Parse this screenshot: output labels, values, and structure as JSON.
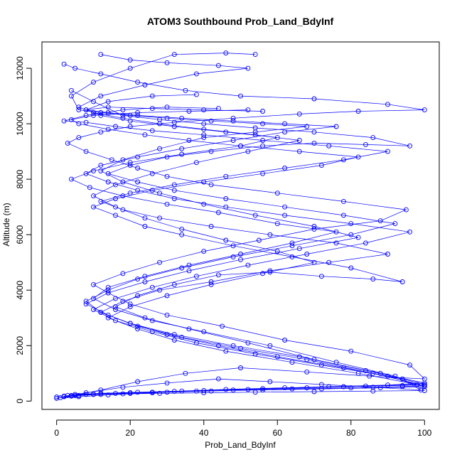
{
  "chart_data": {
    "type": "line",
    "title": "ATOM3 Southbound Prob_Land_BdyInf",
    "xlabel": "Prob_Land_BdyInf",
    "ylabel": "Altitude (m)",
    "xlim": [
      -4,
      104
    ],
    "ylim": [
      -300,
      12950
    ],
    "x_ticks": [
      0,
      20,
      40,
      60,
      80,
      100
    ],
    "y_ticks": [
      0,
      2000,
      4000,
      6000,
      8000,
      10000,
      12000
    ],
    "x_tick_labels": [
      "0",
      "20",
      "40",
      "60",
      "80",
      "100"
    ],
    "y_tick_labels": [
      "0",
      "2000",
      "4000",
      "6000",
      "8000",
      "10000",
      "12000"
    ],
    "marker": "open-circle",
    "grid": false,
    "legend": "none",
    "color": "#0000ff",
    "series": [
      {
        "x": [
          0,
          5,
          12,
          22,
          35,
          50,
          68,
          85,
          100,
          96,
          80,
          62,
          45,
          30,
          20,
          14,
          10,
          18,
          28,
          40,
          55,
          70,
          88,
          95,
          78,
          60,
          42,
          30,
          22,
          15,
          8,
          3,
          6,
          12,
          20,
          32,
          48,
          66,
          82,
          100,
          90,
          70,
          50,
          35,
          22,
          12,
          5,
          2
        ],
        "y": [
          150,
          200,
          400,
          700,
          1000,
          1200,
          1050,
          900,
          800,
          1300,
          1800,
          2200,
          2700,
          3100,
          3500,
          3900,
          4200,
          4600,
          5000,
          5400,
          5800,
          6200,
          6500,
          6900,
          7200,
          7500,
          7800,
          8100,
          8400,
          8700,
          9000,
          9300,
          9500,
          9700,
          9900,
          10050,
          10200,
          10350,
          10450,
          10500,
          10700,
          10900,
          11000,
          11200,
          11500,
          11800,
          12000,
          12150
        ]
      },
      {
        "x": [
          2,
          8,
          18,
          30,
          44,
          58,
          72,
          86,
          99,
          92,
          76,
          58,
          40,
          26,
          16,
          10,
          14,
          24,
          36,
          50,
          64,
          76,
          60,
          44,
          30,
          18,
          9,
          4,
          10,
          20,
          34,
          50,
          60,
          46,
          32,
          20,
          12,
          8,
          14,
          26,
          38
        ],
        "y": [
          180,
          300,
          500,
          650,
          800,
          700,
          600,
          500,
          400,
          900,
          1400,
          2000,
          2500,
          2900,
          3300,
          3700,
          4100,
          4500,
          4900,
          5300,
          5700,
          6100,
          6400,
          6800,
          7100,
          7400,
          7700,
          8000,
          8300,
          8600,
          8900,
          9200,
          9500,
          9700,
          9900,
          10100,
          10300,
          10500,
          10800,
          11000,
          11050
        ]
      },
      {
        "x": [
          4,
          10,
          20,
          32,
          46,
          62,
          78,
          94,
          100,
          88,
          70,
          52,
          36,
          24,
          16,
          22,
          32,
          44,
          58,
          72,
          86,
          94,
          80,
          64,
          48,
          34,
          24,
          16,
          10,
          16,
          26,
          40,
          56,
          72,
          82,
          66,
          50,
          36,
          24,
          14,
          6,
          4,
          10,
          22,
          36,
          52
        ],
        "y": [
          200,
          250,
          300,
          350,
          420,
          480,
          520,
          560,
          600,
          1000,
          1500,
          2100,
          2600,
          3000,
          3400,
          3800,
          4200,
          4550,
          4650,
          4500,
          4400,
          4300,
          4800,
          5200,
          5600,
          6000,
          6300,
          6700,
          7000,
          7300,
          7600,
          7900,
          8200,
          8500,
          8800,
          9000,
          9200,
          9400,
          9600,
          9800,
          10000,
          10150,
          10300,
          10400,
          10450,
          10500
        ]
      },
      {
        "x": [
          1,
          6,
          14,
          26,
          40,
          56,
          74,
          90,
          100,
          84,
          66,
          48,
          32,
          20,
          12,
          18,
          28,
          42,
          58,
          74,
          90,
          76,
          58,
          42,
          28,
          18,
          12,
          20,
          32,
          46,
          62,
          78,
          90,
          74,
          56,
          40,
          26,
          16,
          8,
          2,
          8,
          18,
          30,
          44
        ],
        "y": [
          120,
          160,
          220,
          300,
          380,
          450,
          520,
          580,
          650,
          1100,
          1600,
          2000,
          2400,
          2800,
          3200,
          3600,
          4000,
          4300,
          4700,
          5000,
          5300,
          5700,
          6000,
          6300,
          6600,
          6900,
          7200,
          7500,
          7800,
          8100,
          8400,
          8700,
          9000,
          9200,
          9400,
          9600,
          9750,
          9900,
          10050,
          10100,
          10300,
          10500,
          10600,
          10550
        ]
      },
      {
        "x": [
          0,
          4,
          10,
          18,
          28,
          40,
          54,
          70,
          86,
          100,
          94,
          78,
          60,
          44,
          30,
          20,
          12,
          8,
          14,
          22,
          34,
          48,
          64,
          80,
          92,
          78,
          62,
          46,
          32,
          22,
          14,
          20,
          30,
          42,
          56,
          70,
          84,
          96,
          86,
          70,
          54,
          40,
          28,
          18,
          10,
          4
        ],
        "y": [
          100,
          180,
          240,
          260,
          280,
          300,
          320,
          340,
          360,
          380,
          800,
          1200,
          1600,
          2000,
          2400,
          2800,
          3200,
          3600,
          4000,
          4400,
          4800,
          5200,
          5600,
          6000,
          6400,
          6700,
          7000,
          7300,
          7600,
          7900,
          8200,
          8500,
          8800,
          9000,
          9200,
          9300,
          9250,
          9200,
          9500,
          9700,
          9850,
          10000,
          10150,
          10300,
          10800,
          11200
        ]
      },
      {
        "x": [
          3,
          8,
          16,
          26,
          38,
          52,
          68,
          84,
          98,
          82,
          64,
          46,
          32,
          22,
          14,
          20,
          30,
          42,
          56,
          70,
          60,
          46,
          34,
          24,
          16,
          10,
          16,
          26,
          38,
          52,
          66,
          54,
          40,
          28,
          18,
          10,
          6,
          12,
          24,
          38,
          52,
          44,
          30,
          20,
          12
        ],
        "y": [
          200,
          240,
          280,
          320,
          360,
          420,
          480,
          540,
          600,
          1000,
          1400,
          1800,
          2200,
          2600,
          3000,
          3400,
          3800,
          4200,
          4600,
          5000,
          5400,
          5800,
          6200,
          6600,
          7000,
          7400,
          7800,
          8200,
          8600,
          9000,
          9400,
          9600,
          9800,
          10000,
          10200,
          10400,
          10600,
          11000,
          11400,
          11800,
          12000,
          12100,
          12200,
          12300,
          12500
        ]
      },
      {
        "x": [
          2,
          6,
          12,
          20,
          30,
          42,
          56,
          72,
          88,
          100,
          90,
          72,
          54,
          38,
          26,
          16,
          10,
          16,
          26,
          38,
          52,
          68,
          84,
          96,
          80,
          62,
          46,
          32,
          22,
          14,
          8,
          12,
          22,
          34,
          48,
          62,
          76,
          62,
          48,
          34,
          22,
          14,
          8,
          14,
          26,
          40,
          56
        ],
        "y": [
          160,
          200,
          240,
          280,
          320,
          360,
          400,
          440,
          480,
          520,
          900,
          1300,
          1700,
          2100,
          2500,
          2900,
          3300,
          3700,
          4100,
          4500,
          4900,
          5300,
          5700,
          6100,
          6400,
          6700,
          7000,
          7300,
          7600,
          7900,
          8200,
          8500,
          8800,
          9100,
          9400,
          9700,
          9900,
          10000,
          10100,
          10200,
          10300,
          10400,
          10500,
          10600,
          10550,
          10500,
          10450
        ]
      },
      {
        "x": [
          5,
          12,
          22,
          34,
          48,
          64,
          80,
          94,
          100,
          86,
          68,
          50,
          34,
          22,
          14,
          8,
          14,
          24,
          36,
          50,
          66,
          82,
          70,
          54,
          40,
          28,
          18,
          12,
          18,
          28,
          40,
          54,
          68,
          56,
          42,
          30,
          20,
          12,
          6,
          4,
          10,
          20,
          32,
          46,
          54
        ],
        "y": [
          240,
          280,
          320,
          360,
          400,
          440,
          480,
          520,
          560,
          1000,
          1500,
          1900,
          2300,
          2700,
          3100,
          3500,
          3900,
          4300,
          4700,
          5100,
          5500,
          5900,
          6300,
          6700,
          7100,
          7500,
          7900,
          8300,
          8700,
          9100,
          9500,
          9700,
          9900,
          10000,
          10100,
          10200,
          10300,
          10400,
          10500,
          11000,
          11500,
          12000,
          12500,
          12550,
          12500
        ]
      }
    ]
  }
}
